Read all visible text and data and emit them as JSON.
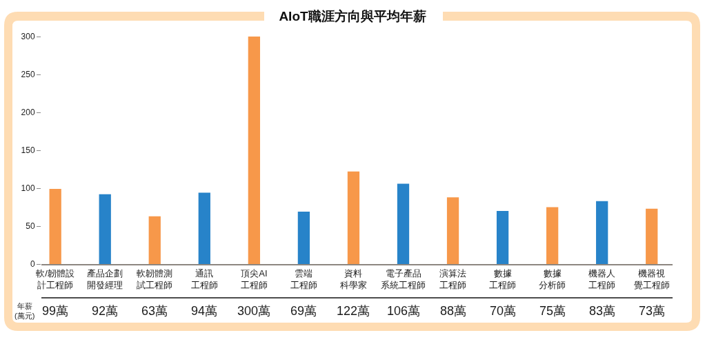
{
  "chart_data": {
    "type": "bar",
    "title": "AIoT職涯方向與平均年薪",
    "categories": [
      "軟/韌體設計工程師",
      "產品企劃開發經理",
      "軟韌體測試工程師",
      "通訊工程師",
      "頂尖AI工程師",
      "雲端工程師",
      "資料科學家",
      "電子產品系統工程師",
      "演算法工程師",
      "數據工程師",
      "數據分析師",
      "機器人工程師",
      "機器視覺工程師"
    ],
    "values": [
      99,
      92,
      63,
      94,
      300,
      69,
      122,
      106,
      88,
      70,
      75,
      83,
      73
    ],
    "colors": [
      "#f7984a",
      "#2783c9",
      "#f7984a",
      "#2783c9",
      "#f7984a",
      "#2783c9",
      "#f7984a",
      "#2783c9",
      "#f7984a",
      "#2783c9",
      "#f7984a",
      "#2783c9",
      "#f7984a"
    ],
    "value_labels": [
      "99萬",
      "92萬",
      "63萬",
      "94萬",
      "300萬",
      "69萬",
      "122萬",
      "106萬",
      "88萬",
      "70萬",
      "75萬",
      "83萬",
      "73萬"
    ],
    "ylim": [
      0,
      300
    ],
    "yticks": [
      0,
      50,
      100,
      150,
      200,
      250,
      300
    ],
    "annotations": [
      "年薪\n(萬元)"
    ]
  }
}
